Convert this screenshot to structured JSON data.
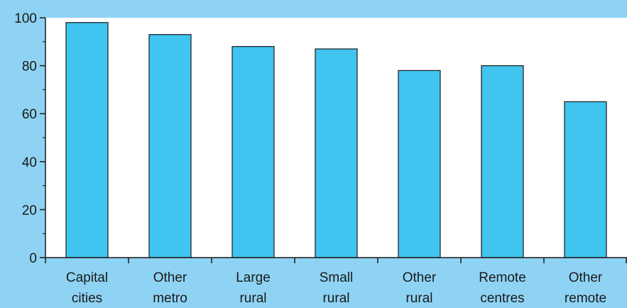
{
  "chart_data": {
    "type": "bar",
    "categories": [
      [
        "Capital",
        "cities"
      ],
      [
        "Other",
        "metro"
      ],
      [
        "Large",
        "rural"
      ],
      [
        "Small",
        "rural"
      ],
      [
        "Other",
        "rural"
      ],
      [
        "Remote",
        "centres"
      ],
      [
        "Other",
        "remote"
      ]
    ],
    "values": [
      98,
      93,
      88,
      87,
      78,
      80,
      65
    ],
    "ylim": [
      0,
      100
    ],
    "yticks": [
      "0",
      "20",
      "40",
      "60",
      "80",
      "100"
    ],
    "grid": false,
    "colors": {
      "background": "#8fd3f4",
      "plot_area": "#ffffff",
      "bar": "#40c4f0",
      "bar_outline": "#1a1a1a",
      "axis": "#1a1a1a"
    }
  }
}
